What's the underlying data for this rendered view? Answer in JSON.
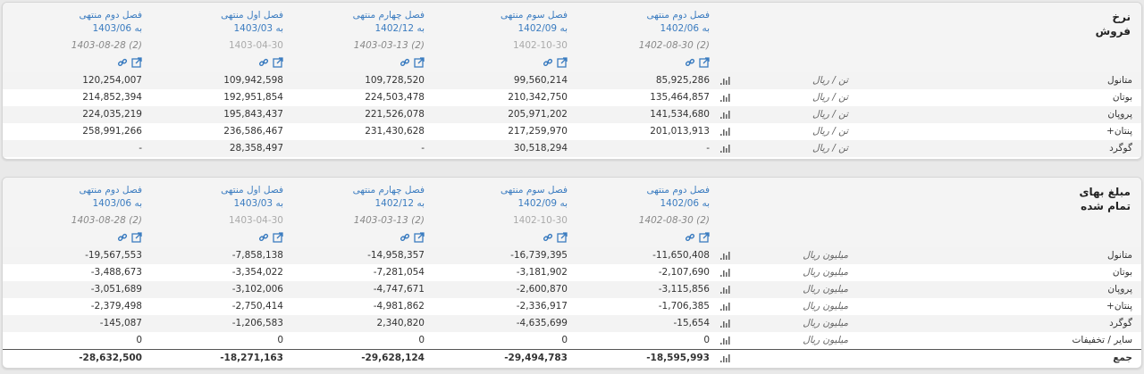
{
  "panels": [
    {
      "title": [
        "نرخ",
        "فروش"
      ],
      "columns": [
        {
          "period": "فصل دوم منتهی",
          "to": "به 1402/06",
          "date": "1402-08-30 (2)"
        },
        {
          "period": "فصل سوم منتهی",
          "to": "به 1402/09",
          "date": "1402-10-30"
        },
        {
          "period": "فصل چهارم منتهی",
          "to": "به 1402/12",
          "date": "1403-03-13 (2)"
        },
        {
          "period": "فصل اول منتهی",
          "to": "به 1403/03",
          "date": "1403-04-30"
        },
        {
          "period": "فصل دوم منتهی",
          "to": "به 1403/06",
          "date": "1403-08-28 (2)"
        }
      ],
      "rows": [
        {
          "label": "متانول",
          "unit": "تن / ریال",
          "values": [
            "85,925,286",
            "99,560,214",
            "109,728,520",
            "109,942,598",
            "120,254,007"
          ]
        },
        {
          "label": "بوتان",
          "unit": "تن / ریال",
          "values": [
            "135,464,857",
            "210,342,750",
            "224,503,478",
            "192,951,854",
            "214,852,394"
          ]
        },
        {
          "label": "پروپان",
          "unit": "تن / ریال",
          "values": [
            "141,534,680",
            "205,971,202",
            "221,526,078",
            "195,843,437",
            "224,035,219"
          ]
        },
        {
          "label": "پنتان+",
          "unit": "تن / ریال",
          "values": [
            "201,013,913",
            "217,259,970",
            "231,430,628",
            "236,586,467",
            "258,991,266"
          ]
        },
        {
          "label": "گوگرد",
          "unit": "تن / ریال",
          "values": [
            "-",
            "30,518,294",
            "-",
            "28,358,497",
            "-"
          ]
        }
      ]
    },
    {
      "title": [
        "مبلغ بهای",
        "تمام شده"
      ],
      "columns": [
        {
          "period": "فصل دوم منتهی",
          "to": "به 1402/06",
          "date": "1402-08-30 (2)"
        },
        {
          "period": "فصل سوم منتهی",
          "to": "به 1402/09",
          "date": "1402-10-30"
        },
        {
          "period": "فصل چهارم منتهی",
          "to": "به 1402/12",
          "date": "1403-03-13 (2)"
        },
        {
          "period": "فصل اول منتهی",
          "to": "به 1403/03",
          "date": "1403-04-30"
        },
        {
          "period": "فصل دوم منتهی",
          "to": "به 1403/06",
          "date": "1403-08-28 (2)"
        }
      ],
      "rows": [
        {
          "label": "متانول",
          "unit": "میلیون ریال",
          "values": [
            "-11,650,408",
            "-16,739,395",
            "-14,958,357",
            "-7,858,138",
            "-19,567,553"
          ]
        },
        {
          "label": "بوتان",
          "unit": "میلیون ریال",
          "values": [
            "-2,107,690",
            "-3,181,902",
            "-7,281,054",
            "-3,354,022",
            "-3,488,673"
          ]
        },
        {
          "label": "پروپان",
          "unit": "میلیون ریال",
          "values": [
            "-3,115,856",
            "-2,600,870",
            "-4,747,671",
            "-3,102,006",
            "-3,051,689"
          ]
        },
        {
          "label": "پنتان+",
          "unit": "میلیون ریال",
          "values": [
            "-1,706,385",
            "-2,336,917",
            "-4,981,862",
            "-2,750,414",
            "-2,379,498"
          ]
        },
        {
          "label": "گوگرد",
          "unit": "میلیون ریال",
          "values": [
            "-15,654",
            "-4,635,699",
            "2,340,820",
            "-1,206,583",
            "-145,087"
          ]
        },
        {
          "label": "سایر / تخفیفات",
          "unit": "میلیون ریال",
          "values": [
            "0",
            "0",
            "0",
            "0",
            "0"
          ]
        }
      ],
      "total": {
        "label": "جمع",
        "values": [
          "-18,595,993",
          "-29,494,783",
          "-29,628,124",
          "-18,271,163",
          "-28,632,500"
        ]
      }
    }
  ]
}
